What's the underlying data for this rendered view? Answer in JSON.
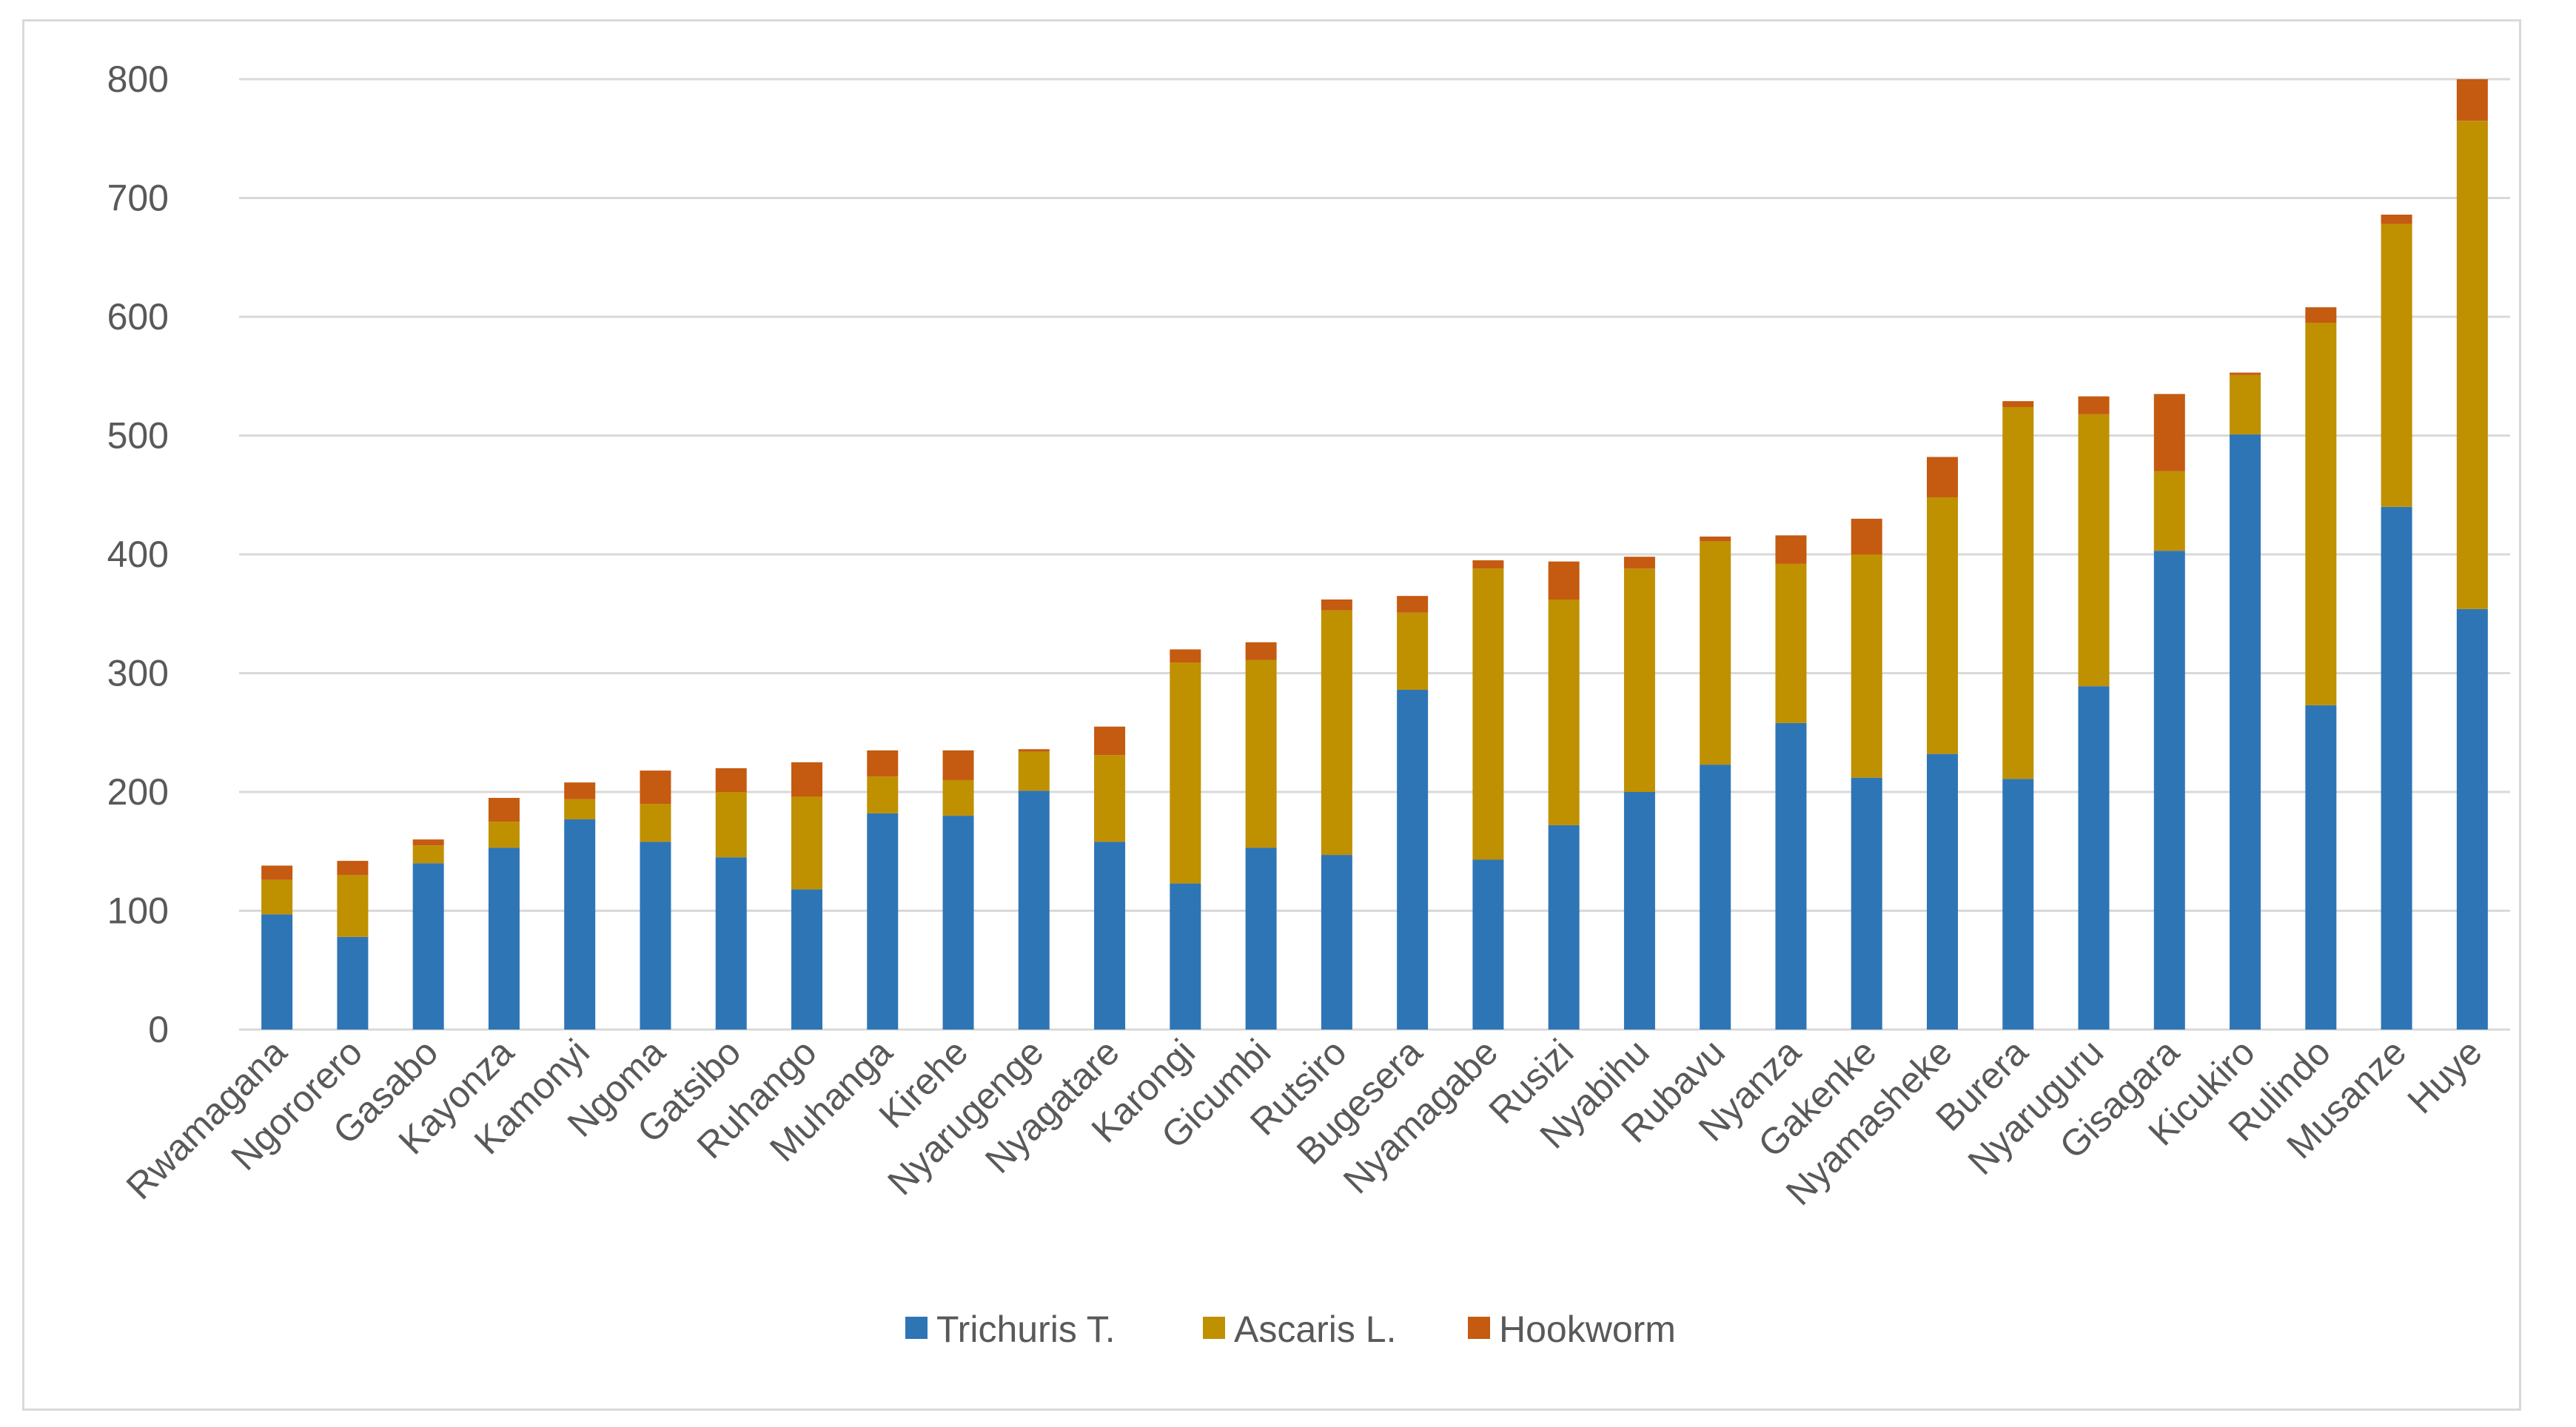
{
  "chart_data": {
    "type": "bar",
    "stacked": true,
    "categories": [
      "Rwamagana",
      "Ngororero",
      "Gasabo",
      "Kayonza",
      "Kamonyi",
      "Ngoma",
      "Gatsibo",
      "Ruhango",
      "Muhanga",
      "Kirehe",
      "Nyarugenge",
      "Nyagatare",
      "Karongi",
      "Gicumbi",
      "Rutsiro",
      "Bugesera",
      "Nyamagabe",
      "Rusizi",
      "Nyabihu",
      "Rubavu",
      "Nyanza",
      "Gakenke",
      "Nyamasheke",
      "Burera",
      "Nyaruguru",
      "Gisagara",
      "Kicukiro",
      "Rulindo",
      "Musanze",
      "Huye"
    ],
    "series": [
      {
        "name": "Trichuris T.",
        "color": "#2E75B6",
        "values": [
          97,
          78,
          140,
          153,
          177,
          158,
          145,
          118,
          182,
          180,
          201,
          158,
          123,
          153,
          147,
          286,
          143,
          172,
          200,
          223,
          258,
          212,
          232,
          211,
          289,
          403,
          501,
          273,
          440,
          354
        ]
      },
      {
        "name": "Ascaris L.",
        "color": "#BF9000",
        "values": [
          29,
          52,
          15,
          22,
          17,
          32,
          55,
          78,
          31,
          30,
          33,
          73,
          186,
          158,
          206,
          65,
          245,
          190,
          188,
          188,
          134,
          188,
          216,
          313,
          229,
          67,
          50,
          322,
          238,
          411
        ]
      },
      {
        "name": "Hookworm",
        "color": "#C55A11",
        "values": [
          12,
          12,
          5,
          20,
          14,
          28,
          20,
          29,
          22,
          25,
          2,
          24,
          11,
          15,
          9,
          14,
          7,
          32,
          10,
          4,
          24,
          30,
          34,
          5,
          15,
          65,
          2,
          13,
          8,
          35
        ]
      }
    ],
    "yticks": [
      "0",
      "100",
      "200",
      "300",
      "400",
      "500",
      "600",
      "700",
      "800"
    ],
    "ylim": [
      0,
      800
    ],
    "grid": true,
    "legend_position": "bottom"
  }
}
